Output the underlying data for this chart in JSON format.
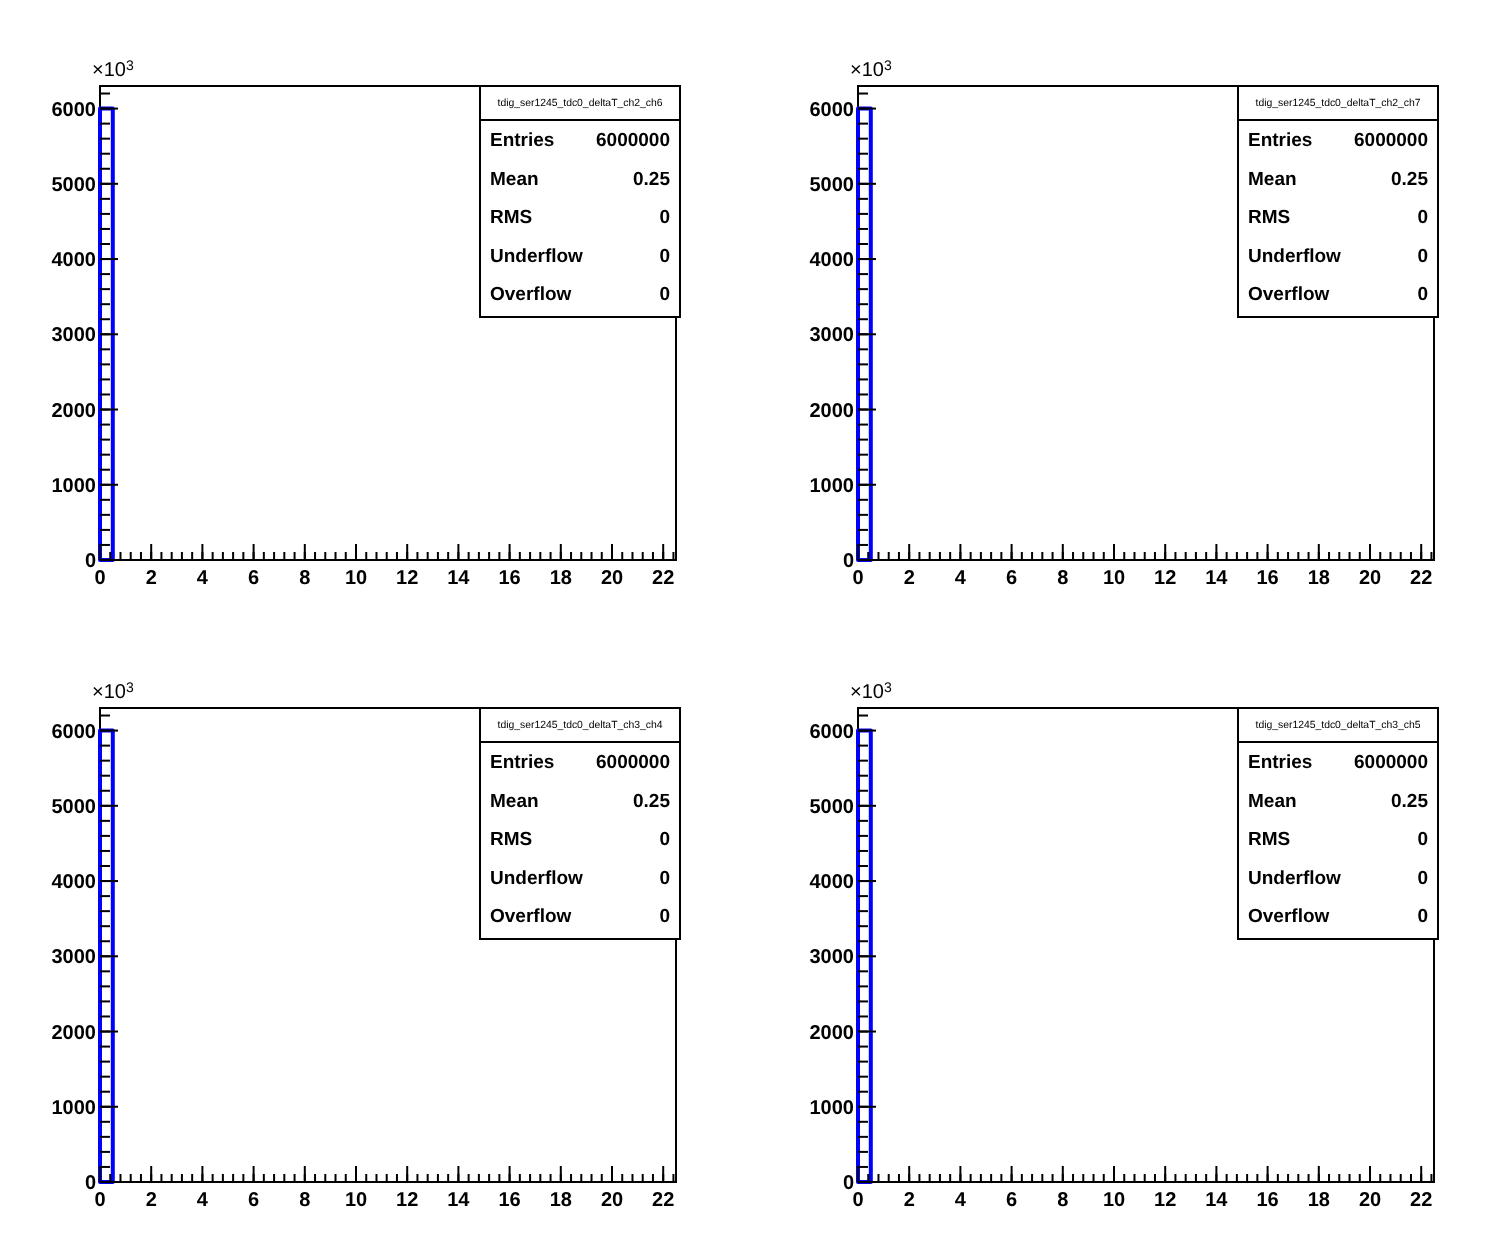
{
  "chart_data": [
    {
      "type": "histogram",
      "title": "tdig_ser1245_tdc0_deltaT_ch2_ch6",
      "ylabel": "×10$^{3}$",
      "bins": [
        0,
        0.5,
        1,
        1.5,
        2,
        2.5,
        3,
        3.5,
        4,
        4.5,
        5,
        5.5,
        6,
        6.5,
        7,
        7.5,
        8,
        8.5,
        9,
        9.5,
        10,
        10.5,
        11,
        11.5,
        12,
        12.5,
        13,
        13.5,
        14,
        14.5,
        15,
        15.5,
        16,
        16.5,
        17,
        17.5,
        18,
        18.5,
        19,
        19.5,
        20,
        20.5,
        21,
        21.5,
        22,
        22.5
      ],
      "values": [
        6000,
        0,
        0,
        0,
        0,
        0,
        0,
        0,
        0,
        0,
        0,
        0,
        0,
        0,
        0,
        0,
        0,
        0,
        0,
        0,
        0,
        0,
        0,
        0,
        0,
        0,
        0,
        0,
        0,
        0,
        0,
        0,
        0,
        0,
        0,
        0,
        0,
        0,
        0,
        0,
        0,
        0,
        0,
        0,
        0
      ],
      "color": "#0000ff",
      "xlim": [
        0,
        22.5
      ],
      "xticks": [
        0,
        2,
        4,
        6,
        8,
        10,
        12,
        14,
        16,
        18,
        20,
        22
      ],
      "ylim": [
        0,
        6300
      ],
      "yticks": [
        0,
        1000,
        2000,
        3000,
        4000,
        5000,
        6000
      ],
      "grid": false,
      "annotations": [
        "Entries 6000000",
        "Mean 0.25",
        "RMS 0",
        "Underflow 0",
        "Overflow 0"
      ]
    },
    {
      "type": "histogram",
      "title": "tdig_ser1245_tdc0_deltaT_ch2_ch7",
      "ylabel": "×10$^{3}$",
      "bins": [
        0,
        0.5,
        1,
        1.5,
        2,
        2.5,
        3,
        3.5,
        4,
        4.5,
        5,
        5.5,
        6,
        6.5,
        7,
        7.5,
        8,
        8.5,
        9,
        9.5,
        10,
        10.5,
        11,
        11.5,
        12,
        12.5,
        13,
        13.5,
        14,
        14.5,
        15,
        15.5,
        16,
        16.5,
        17,
        17.5,
        18,
        18.5,
        19,
        19.5,
        20,
        20.5,
        21,
        21.5,
        22,
        22.5
      ],
      "values": [
        6000,
        0,
        0,
        0,
        0,
        0,
        0,
        0,
        0,
        0,
        0,
        0,
        0,
        0,
        0,
        0,
        0,
        0,
        0,
        0,
        0,
        0,
        0,
        0,
        0,
        0,
        0,
        0,
        0,
        0,
        0,
        0,
        0,
        0,
        0,
        0,
        0,
        0,
        0,
        0,
        0,
        0,
        0,
        0,
        0
      ],
      "color": "#0000ff",
      "xlim": [
        0,
        22.5
      ],
      "xticks": [
        0,
        2,
        4,
        6,
        8,
        10,
        12,
        14,
        16,
        18,
        20,
        22
      ],
      "ylim": [
        0,
        6300
      ],
      "yticks": [
        0,
        1000,
        2000,
        3000,
        4000,
        5000,
        6000
      ],
      "grid": false,
      "annotations": [
        "Entries 6000000",
        "Mean 0.25",
        "RMS 0",
        "Underflow 0",
        "Overflow 0"
      ]
    },
    {
      "type": "histogram",
      "title": "tdig_ser1245_tdc0_deltaT_ch3_ch4",
      "ylabel": "×10$^{3}$",
      "bins": [
        0,
        0.5,
        1,
        1.5,
        2,
        2.5,
        3,
        3.5,
        4,
        4.5,
        5,
        5.5,
        6,
        6.5,
        7,
        7.5,
        8,
        8.5,
        9,
        9.5,
        10,
        10.5,
        11,
        11.5,
        12,
        12.5,
        13,
        13.5,
        14,
        14.5,
        15,
        15.5,
        16,
        16.5,
        17,
        17.5,
        18,
        18.5,
        19,
        19.5,
        20,
        20.5,
        21,
        21.5,
        22,
        22.5
      ],
      "values": [
        6000,
        0,
        0,
        0,
        0,
        0,
        0,
        0,
        0,
        0,
        0,
        0,
        0,
        0,
        0,
        0,
        0,
        0,
        0,
        0,
        0,
        0,
        0,
        0,
        0,
        0,
        0,
        0,
        0,
        0,
        0,
        0,
        0,
        0,
        0,
        0,
        0,
        0,
        0,
        0,
        0,
        0,
        0,
        0,
        0
      ],
      "color": "#0000ff",
      "xlim": [
        0,
        22.5
      ],
      "xticks": [
        0,
        2,
        4,
        6,
        8,
        10,
        12,
        14,
        16,
        18,
        20,
        22
      ],
      "ylim": [
        0,
        6300
      ],
      "yticks": [
        0,
        1000,
        2000,
        3000,
        4000,
        5000,
        6000
      ],
      "grid": false,
      "annotations": [
        "Entries 6000000",
        "Mean 0.25",
        "RMS 0",
        "Underflow 0",
        "Overflow 0"
      ]
    },
    {
      "type": "histogram",
      "title": "tdig_ser1245_tdc0_deltaT_ch3_ch5",
      "ylabel": "×10$^{3}$",
      "bins": [
        0,
        0.5,
        1,
        1.5,
        2,
        2.5,
        3,
        3.5,
        4,
        4.5,
        5,
        5.5,
        6,
        6.5,
        7,
        7.5,
        8,
        8.5,
        9,
        9.5,
        10,
        10.5,
        11,
        11.5,
        12,
        12.5,
        13,
        13.5,
        14,
        14.5,
        15,
        15.5,
        16,
        16.5,
        17,
        17.5,
        18,
        18.5,
        19,
        19.5,
        20,
        20.5,
        21,
        21.5,
        22,
        22.5
      ],
      "values": [
        6000,
        0,
        0,
        0,
        0,
        0,
        0,
        0,
        0,
        0,
        0,
        0,
        0,
        0,
        0,
        0,
        0,
        0,
        0,
        0,
        0,
        0,
        0,
        0,
        0,
        0,
        0,
        0,
        0,
        0,
        0,
        0,
        0,
        0,
        0,
        0,
        0,
        0,
        0,
        0,
        0,
        0,
        0,
        0,
        0
      ],
      "color": "#0000ff",
      "xlim": [
        0,
        22.5
      ],
      "xticks": [
        0,
        2,
        4,
        6,
        8,
        10,
        12,
        14,
        16,
        18,
        20,
        22
      ],
      "ylim": [
        0,
        6300
      ],
      "yticks": [
        0,
        1000,
        2000,
        3000,
        4000,
        5000,
        6000
      ],
      "grid": false,
      "annotations": [
        "Entries 6000000",
        "Mean 0.25",
        "RMS 0",
        "Underflow 0",
        "Overflow 0"
      ]
    }
  ]
}
